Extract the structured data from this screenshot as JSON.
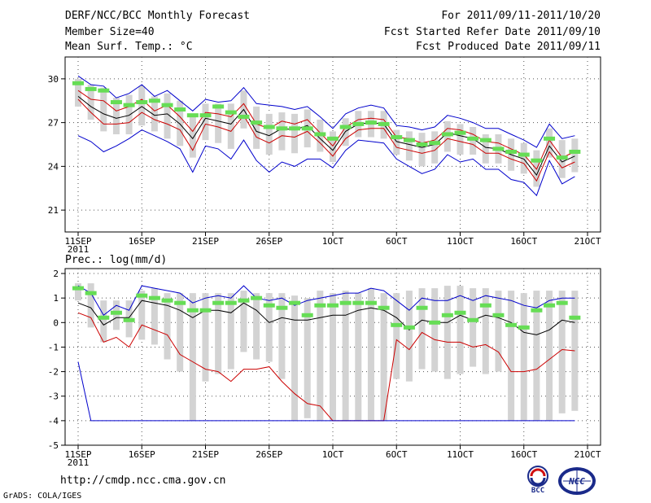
{
  "header": {
    "title": "DERF/NCC/BCC Monthly Forecast",
    "member_size": "Member Size=40",
    "variable": "Mean Surf. Temp.: °C",
    "period": "For 2011/09/11-2011/10/20",
    "fcst_started": "Fcst Started Refer Date 2011/09/10",
    "fcst_produced": "Fcst Produced Date 2011/09/11"
  },
  "footer": {
    "url": "http://cmdp.ncc.cma.gov.cn",
    "credit": "GrADS: COLA/IGES"
  },
  "logos": {
    "bcc": "BCC",
    "ncc": "NCC"
  },
  "colors": {
    "box": "#d3d3d3",
    "median": "#66dd55",
    "mean": "#000000",
    "upper": "#0000cc",
    "lower": "#cc0000",
    "grid": "#555555"
  },
  "chart_data": [
    {
      "type": "line",
      "title": "Mean Surf. Temp.: °C",
      "ylabel": "Mean Surf. Temp.: °C",
      "ylim": [
        19.5,
        31.5
      ],
      "yticks": [
        21,
        24,
        27,
        30
      ],
      "xticks": [
        {
          "day": 0,
          "label": "11SEP",
          "sub": "2011"
        },
        {
          "day": 5,
          "label": "16SEP"
        },
        {
          "day": 10,
          "label": "21SEP"
        },
        {
          "day": 15,
          "label": "26SEP"
        },
        {
          "day": 20,
          "label": "1OCT"
        },
        {
          "day": 25,
          "label": "6OCT"
        },
        {
          "day": 30,
          "label": "11OCT"
        },
        {
          "day": 35,
          "label": "16OCT"
        },
        {
          "day": 40,
          "label": "21OCT"
        }
      ],
      "x": [
        0,
        1,
        2,
        3,
        4,
        5,
        6,
        7,
        8,
        9,
        10,
        11,
        12,
        13,
        14,
        15,
        16,
        17,
        18,
        19,
        20,
        21,
        22,
        23,
        24,
        25,
        26,
        27,
        28,
        29,
        30,
        31,
        32,
        33,
        34,
        35,
        36,
        37,
        38,
        39
      ],
      "series": [
        {
          "name": "upper",
          "role": "line",
          "color": "#0000cc",
          "values": [
            30.2,
            29.6,
            29.5,
            28.7,
            29.0,
            29.6,
            28.8,
            29.2,
            28.5,
            27.8,
            28.6,
            28.4,
            28.5,
            29.4,
            28.3,
            28.2,
            28.1,
            27.9,
            28.1,
            27.4,
            26.6,
            27.6,
            28.0,
            28.2,
            28.0,
            26.8,
            26.7,
            26.5,
            26.7,
            27.5,
            27.3,
            27.0,
            26.6,
            26.6,
            26.2,
            25.8,
            25.3,
            26.9,
            25.9,
            26.1
          ]
        },
        {
          "name": "upper-red",
          "role": "line",
          "color": "#cc0000",
          "values": [
            29.2,
            28.6,
            28.5,
            27.8,
            28.1,
            28.6,
            27.8,
            28.2,
            27.4,
            26.4,
            27.7,
            27.6,
            27.4,
            28.3,
            26.9,
            26.6,
            27.1,
            26.9,
            27.2,
            26.3,
            25.4,
            26.7,
            27.2,
            27.3,
            27.2,
            26.0,
            25.9,
            25.6,
            25.8,
            26.6,
            26.5,
            26.2,
            25.7,
            25.6,
            25.2,
            24.8,
            23.8,
            25.8,
            24.6,
            25.0
          ]
        },
        {
          "name": "mean",
          "role": "line",
          "color": "#000000",
          "values": [
            28.8,
            28.1,
            27.6,
            27.3,
            27.5,
            28.1,
            27.5,
            27.6,
            26.9,
            25.9,
            27.3,
            27.1,
            26.9,
            27.9,
            26.4,
            26.1,
            26.6,
            26.5,
            26.8,
            25.9,
            25.1,
            26.4,
            26.9,
            27.0,
            26.9,
            25.7,
            25.5,
            25.3,
            25.5,
            26.3,
            26.1,
            25.9,
            25.3,
            25.2,
            24.8,
            24.5,
            23.4,
            25.4,
            24.3,
            24.7
          ]
        },
        {
          "name": "lower-red",
          "role": "line",
          "color": "#cc0000",
          "values": [
            28.6,
            27.7,
            26.9,
            26.9,
            27.0,
            27.7,
            27.2,
            26.9,
            26.5,
            25.1,
            26.9,
            26.7,
            26.4,
            27.5,
            26.0,
            25.6,
            26.1,
            26.0,
            26.4,
            25.6,
            24.7,
            25.9,
            26.5,
            26.6,
            26.6,
            25.3,
            25.1,
            24.9,
            25.1,
            25.9,
            25.7,
            25.5,
            24.9,
            24.9,
            24.5,
            24.2,
            23.0,
            25.0,
            23.9,
            24.3
          ]
        },
        {
          "name": "lower",
          "role": "line",
          "color": "#0000cc",
          "values": [
            26.1,
            25.7,
            25.0,
            25.4,
            25.9,
            26.5,
            26.1,
            25.7,
            25.2,
            23.6,
            25.4,
            25.2,
            24.5,
            25.8,
            24.4,
            23.6,
            24.3,
            24.0,
            24.5,
            24.5,
            23.9,
            25.1,
            25.8,
            25.7,
            25.6,
            24.5,
            24.0,
            23.5,
            23.8,
            24.8,
            24.3,
            24.5,
            23.8,
            23.8,
            23.1,
            22.9,
            22.0,
            24.4,
            22.8,
            23.3
          ]
        },
        {
          "name": "median",
          "role": "median-bar",
          "color": "#66dd55",
          "values": [
            29.7,
            29.3,
            29.2,
            28.4,
            28.2,
            28.4,
            28.5,
            28.2,
            27.9,
            27.5,
            27.5,
            28.1,
            27.7,
            27.4,
            27.0,
            26.7,
            26.6,
            26.6,
            26.6,
            26.2,
            25.9,
            26.7,
            26.9,
            27.0,
            26.9,
            26.0,
            25.8,
            25.5,
            25.6,
            26.2,
            26.3,
            25.9,
            25.8,
            25.2,
            25.0,
            24.8,
            24.4,
            25.9,
            24.6,
            25.0
          ]
        },
        {
          "name": "box-high",
          "role": "box-top",
          "values": [
            30.0,
            29.6,
            29.4,
            28.7,
            28.9,
            29.5,
            28.8,
            29.0,
            28.5,
            27.6,
            28.3,
            28.3,
            28.3,
            29.2,
            28.1,
            27.6,
            27.7,
            27.6,
            27.9,
            27.2,
            26.4,
            27.3,
            27.8,
            27.8,
            27.8,
            26.5,
            26.4,
            26.3,
            26.4,
            27.1,
            26.9,
            26.7,
            26.2,
            26.2,
            25.9,
            25.6,
            25.1,
            26.6,
            25.8,
            25.9
          ]
        },
        {
          "name": "box-low",
          "role": "box-bottom",
          "values": [
            28.1,
            27.2,
            26.4,
            26.2,
            26.2,
            26.8,
            26.4,
            25.9,
            25.4,
            24.6,
            25.8,
            25.6,
            25.2,
            26.6,
            25.2,
            24.8,
            25.1,
            24.9,
            25.3,
            25.0,
            24.3,
            25.4,
            26.0,
            26.0,
            25.9,
            24.8,
            24.4,
            24.0,
            24.2,
            25.0,
            24.8,
            24.8,
            24.2,
            24.2,
            23.7,
            23.5,
            22.6,
            24.6,
            23.2,
            23.6
          ]
        }
      ]
    },
    {
      "type": "line",
      "title": "Prec.: log(mm/d)",
      "ylabel": "Prec.: log(mm/d)",
      "ylim": [
        -5,
        2.2
      ],
      "yticks": [
        -5,
        -4,
        -3,
        -2,
        -1,
        0,
        1,
        2
      ],
      "xticks": [
        {
          "day": 0,
          "label": "11SEP",
          "sub": "2011"
        },
        {
          "day": 5,
          "label": "16SEP"
        },
        {
          "day": 10,
          "label": "21SEP"
        },
        {
          "day": 15,
          "label": "26SEP"
        },
        {
          "day": 20,
          "label": "1OCT"
        },
        {
          "day": 25,
          "label": "6OCT"
        },
        {
          "day": 30,
          "label": "11OCT"
        },
        {
          "day": 35,
          "label": "16OCT"
        },
        {
          "day": 40,
          "label": "21OCT"
        }
      ],
      "x": [
        0,
        1,
        2,
        3,
        4,
        5,
        6,
        7,
        8,
        9,
        10,
        11,
        12,
        13,
        14,
        15,
        16,
        17,
        18,
        19,
        20,
        21,
        22,
        23,
        24,
        25,
        26,
        27,
        28,
        29,
        30,
        31,
        32,
        33,
        34,
        35,
        36,
        37,
        38,
        39
      ],
      "series": [
        {
          "name": "upper",
          "role": "line",
          "color": "#0000cc",
          "values": [
            1.5,
            1.2,
            0.3,
            0.7,
            0.5,
            1.5,
            1.4,
            1.3,
            1.2,
            0.8,
            1.0,
            1.1,
            1.0,
            1.5,
            1.0,
            0.9,
            1.0,
            0.7,
            0.9,
            1.0,
            1.1,
            1.2,
            1.2,
            1.4,
            1.3,
            0.9,
            0.5,
            1.0,
            0.9,
            0.9,
            1.1,
            0.9,
            1.1,
            1.0,
            0.9,
            0.7,
            0.6,
            0.9,
            1.0,
            1.0
          ]
        },
        {
          "name": "mean",
          "role": "line",
          "color": "#000000",
          "values": [
            0.8,
            0.6,
            -0.1,
            0.2,
            0.2,
            0.9,
            0.8,
            0.7,
            0.5,
            0.2,
            0.5,
            0.5,
            0.4,
            0.8,
            0.5,
            0.0,
            0.2,
            0.1,
            0.1,
            0.2,
            0.3,
            0.3,
            0.5,
            0.6,
            0.5,
            0.2,
            -0.3,
            0.1,
            0.0,
            0.0,
            0.3,
            0.1,
            0.3,
            0.2,
            0.0,
            -0.4,
            -0.5,
            -0.3,
            0.1,
            0.0
          ]
        },
        {
          "name": "lower-red",
          "role": "line",
          "color": "#cc0000",
          "values": [
            0.4,
            0.2,
            -0.8,
            -0.6,
            -1.0,
            -0.1,
            -0.3,
            -0.5,
            -1.3,
            -1.6,
            -1.9,
            -2.0,
            -2.4,
            -1.9,
            -1.9,
            -1.8,
            -2.4,
            -2.9,
            -3.3,
            -3.4,
            -4.0,
            -4.0,
            -4.0,
            -4.0,
            -4.0,
            -0.7,
            -1.1,
            -0.4,
            -0.7,
            -0.8,
            -0.8,
            -1.0,
            -0.9,
            -1.2,
            -2.0,
            -2.0,
            -1.9,
            -1.5,
            -1.1,
            -1.15
          ]
        },
        {
          "name": "lower",
          "role": "line",
          "color": "#0000cc",
          "values": [
            -1.6,
            -4.0,
            -4.0,
            -4.0,
            -4.0,
            -4.0,
            -4.0,
            -4.0,
            -4.0,
            -4.0,
            -4.0,
            -4.0,
            -4.0,
            -4.0,
            -4.0,
            -4.0,
            -4.0,
            -4.0,
            -4.0,
            -4.0,
            -4.0,
            -4.0,
            -4.0,
            -4.0,
            -4.0,
            -4.0,
            -4.0,
            -4.0,
            -4.0,
            -4.0,
            -4.0,
            -4.0,
            -4.0,
            -4.0,
            -4.0,
            -4.0,
            -4.0,
            -4.0,
            -4.0,
            -4.0
          ]
        },
        {
          "name": "median",
          "role": "median-bar",
          "color": "#66dd55",
          "values": [
            1.4,
            1.2,
            0.2,
            0.4,
            0.1,
            1.1,
            1.0,
            0.9,
            0.8,
            0.5,
            0.5,
            0.8,
            0.8,
            0.9,
            1.0,
            0.7,
            0.6,
            0.8,
            0.3,
            0.7,
            0.7,
            0.8,
            0.8,
            0.8,
            0.6,
            -0.1,
            -0.2,
            0.6,
            0.0,
            0.3,
            0.4,
            0.1,
            0.7,
            0.3,
            -0.1,
            -0.2,
            0.5,
            0.7,
            0.8,
            0.2
          ]
        },
        {
          "name": "box-high",
          "role": "box-top",
          "values": [
            1.6,
            1.6,
            0.9,
            0.9,
            0.9,
            1.3,
            1.4,
            1.2,
            1.2,
            1.2,
            1.2,
            1.2,
            1.2,
            1.3,
            1.2,
            1.2,
            1.2,
            1.1,
            1.0,
            1.3,
            1.2,
            1.3,
            1.2,
            1.4,
            1.2,
            1.2,
            1.3,
            1.4,
            1.4,
            1.5,
            1.5,
            1.4,
            1.4,
            1.3,
            1.3,
            1.2,
            1.3,
            1.3,
            1.3,
            1.3
          ]
        },
        {
          "name": "box-low",
          "role": "box-bottom",
          "values": [
            0.9,
            -0.2,
            -0.8,
            -0.3,
            -0.6,
            -0.7,
            -0.9,
            -1.5,
            -2.0,
            -4.0,
            -2.4,
            -2.1,
            -1.9,
            -1.2,
            -1.5,
            -1.6,
            -2.3,
            -4.0,
            -3.9,
            -4.0,
            -4.0,
            -4.0,
            -4.0,
            -4.0,
            -4.0,
            -2.3,
            -2.4,
            -1.9,
            -2.0,
            -2.3,
            -2.1,
            -1.8,
            -2.1,
            -2.0,
            -4.0,
            -4.0,
            -4.0,
            -4.0,
            -3.7,
            -3.6
          ]
        }
      ]
    }
  ]
}
